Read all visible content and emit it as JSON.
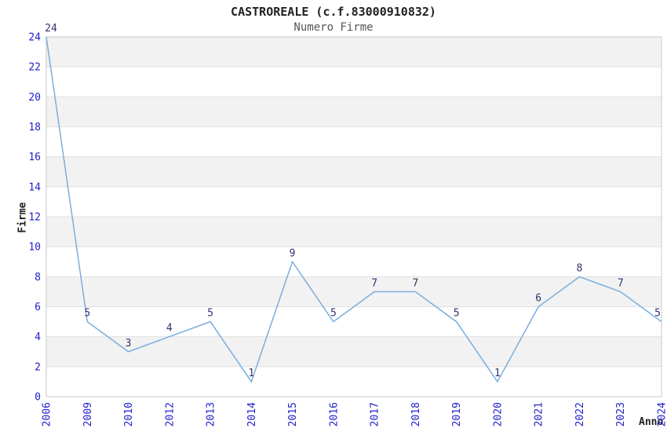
{
  "chart_data": {
    "type": "line",
    "title": "CASTROREALE (c.f.83000910832)",
    "subtitle": "Numero Firme",
    "xlabel": "Anno",
    "ylabel": "Firme",
    "categories": [
      "2006",
      "2009",
      "2010",
      "2012",
      "2013",
      "2014",
      "2015",
      "2016",
      "2017",
      "2018",
      "2019",
      "2020",
      "2021",
      "2022",
      "2023",
      "2024"
    ],
    "values": [
      24,
      5,
      3,
      4,
      5,
      1,
      9,
      5,
      7,
      7,
      5,
      1,
      6,
      8,
      7,
      5
    ],
    "ylim": [
      0,
      24
    ],
    "ytick_step": 2,
    "yticks": [
      0,
      2,
      4,
      6,
      8,
      10,
      12,
      14,
      16,
      18,
      20,
      22,
      24
    ],
    "grid": "horizontal-alternating-bands",
    "legend": "none",
    "point_markers": false,
    "data_labels_shown": true,
    "colors": {
      "line": "#7aaede",
      "tick_labels": "#2222cc",
      "data_labels": "#333370",
      "band_fill": "#f2f2f2",
      "gridline": "#e0e0e0",
      "plot_border": "#c8c8c8",
      "title": "#222222",
      "subtitle": "#555555",
      "axis_titles": "#222222",
      "background": "#ffffff"
    }
  }
}
